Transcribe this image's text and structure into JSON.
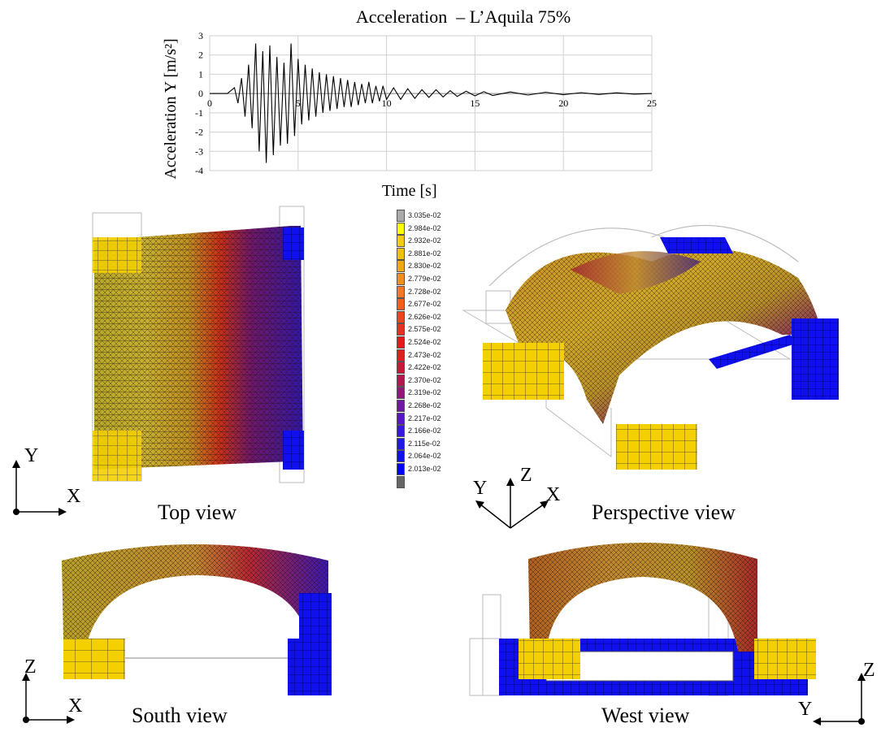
{
  "title": "Acceleration  – L’Aquila 75%",
  "chart_data": {
    "type": "line",
    "title": "Acceleration  – L’Aquila 75%",
    "xlabel": "Time [s]",
    "ylabel": "Acceleration Y [m/s²]",
    "xlim": [
      0,
      25
    ],
    "ylim": [
      -4,
      3
    ],
    "xticks": [
      "0",
      "5",
      "10",
      "15",
      "20",
      "25"
    ],
    "yticks": [
      "3",
      "2",
      "1",
      "0",
      "-1",
      "-2",
      "-3",
      "-4"
    ],
    "grid": true,
    "series": [
      {
        "x": [
          0,
          1,
          1.4,
          1.6,
          1.8,
          2.0,
          2.2,
          2.4,
          2.6,
          2.8,
          3.0,
          3.2,
          3.4,
          3.6,
          3.8,
          4.0,
          4.2,
          4.4,
          4.6,
          4.8,
          5.0,
          5.2,
          5.4,
          5.6,
          5.8,
          6.0,
          6.2,
          6.4,
          6.6,
          6.8,
          7.0,
          7.2,
          7.4,
          7.6,
          7.8,
          8.0,
          8.2,
          8.4,
          8.6,
          8.8,
          9.0,
          9.2,
          9.4,
          9.6,
          9.8,
          10.0,
          10.4,
          10.8,
          11.2,
          11.6,
          12.0,
          12.4,
          12.8,
          13.2,
          13.6,
          14.0,
          14.5,
          15.0,
          15.5,
          16.0,
          17.0,
          18.0,
          19.0,
          20.0,
          21.0,
          22.0,
          23.0,
          24.0,
          25.0
        ],
        "values": [
          0,
          0,
          0.3,
          -0.5,
          0.8,
          -1.2,
          1.5,
          -1.8,
          2.6,
          -3.0,
          2.2,
          -3.6,
          2.5,
          -3.2,
          1.9,
          -2.7,
          1.6,
          -2.6,
          2.6,
          -2.2,
          1.8,
          -1.6,
          1.5,
          -1.4,
          1.3,
          -1.2,
          1.1,
          -1.0,
          1.0,
          -0.9,
          0.9,
          -0.8,
          0.8,
          -0.7,
          0.7,
          -0.7,
          0.6,
          -0.6,
          0.5,
          -0.5,
          0.6,
          -0.5,
          0.4,
          -0.4,
          0.4,
          -0.3,
          0.3,
          -0.3,
          0.25,
          -0.25,
          0.2,
          -0.2,
          0.2,
          -0.18,
          0.15,
          -0.15,
          0.12,
          -0.12,
          0.1,
          -0.1,
          0.08,
          -0.08,
          0.07,
          -0.06,
          0.05,
          -0.05,
          0.04,
          -0.03,
          0
        ]
      }
    ]
  },
  "legend": {
    "values": [
      "3.035e-02",
      "2.984e-02",
      "2.932e-02",
      "2.881e-02",
      "2.830e-02",
      "2.779e-02",
      "2.728e-02",
      "2.677e-02",
      "2.626e-02",
      "2.575e-02",
      "2.524e-02",
      "2.473e-02",
      "2.422e-02",
      "2.370e-02",
      "2.319e-02",
      "2.268e-02",
      "2.217e-02",
      "2.166e-02",
      "2.115e-02",
      "2.064e-02",
      "2.013e-02"
    ],
    "colors": [
      "#aaaaaa",
      "#ffff00",
      "#f4cc18",
      "#f0c010",
      "#f0a818",
      "#f09020",
      "#f07828",
      "#ef6020",
      "#e84820",
      "#e83020",
      "#e81818",
      "#e02020",
      "#c81838",
      "#b01850",
      "#901878",
      "#7018a0",
      "#5818c0",
      "#3818d8",
      "#2018e8",
      "#1010f0",
      "#0000ff"
    ],
    "over_color": "#aaaaaa",
    "under_color": "#666666"
  },
  "views": {
    "top": "Top view",
    "perspective": "Perspective view",
    "south": "South view",
    "west": "West view"
  },
  "axes": {
    "x": "X",
    "y": "Y",
    "z": "Z"
  },
  "colors": {
    "support_yellow": "#f6d400",
    "support_blue": "#1010ee",
    "mesh_dark": "#2a1a1a"
  }
}
